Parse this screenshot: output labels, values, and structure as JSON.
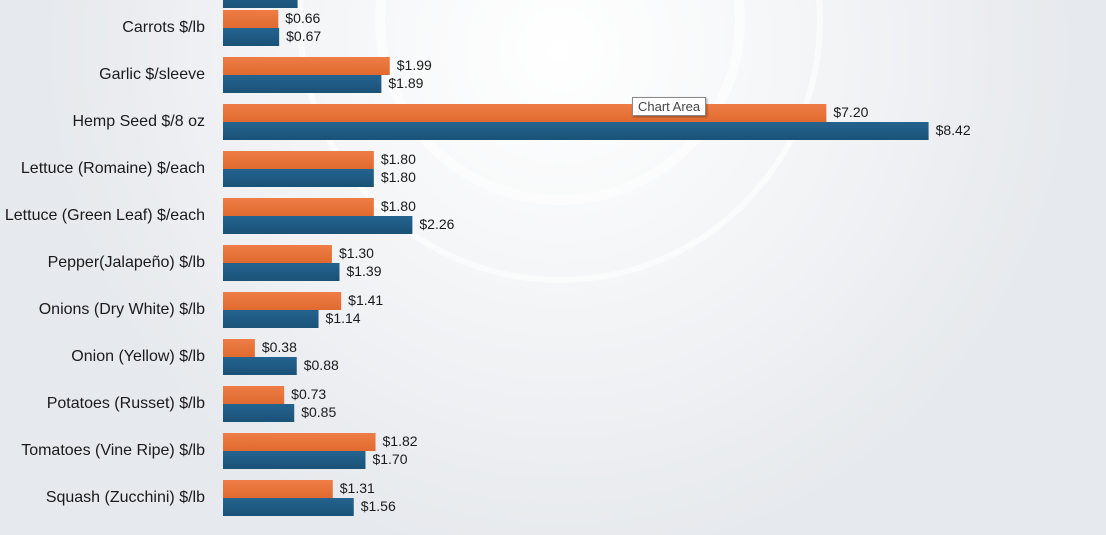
{
  "chart_data": {
    "type": "bar",
    "orientation": "horizontal",
    "categories": [
      "Carrots $/lb",
      "Garlic $/sleeve",
      "Hemp Seed $/8 oz",
      "Lettuce (Romaine) $/each",
      "Lettuce (Green Leaf) $/each",
      "Pepper(Jalapeño) $/lb",
      "Onions (Dry White) $/lb",
      "Onion (Yellow) $/lb",
      "Potatoes (Russet) $/lb",
      "Tomatoes (Vine Ripe) $/lb",
      "Squash (Zucchini) $/lb"
    ],
    "series": [
      {
        "color": "#e8743b",
        "values": [
          0.66,
          1.99,
          7.2,
          1.8,
          1.8,
          1.3,
          1.41,
          0.38,
          0.73,
          1.82,
          1.31
        ],
        "labels": [
          "$0.66",
          "$1.99",
          "$7.20",
          "$1.80",
          "$1.80",
          "$1.30",
          "$1.41",
          "$0.38",
          "$0.73",
          "$1.82",
          "$1.31"
        ]
      },
      {
        "color": "#1f5b84",
        "values": [
          0.67,
          1.89,
          8.42,
          1.8,
          2.26,
          1.39,
          1.14,
          0.88,
          0.85,
          1.7,
          1.56
        ],
        "labels": [
          "$0.67",
          "$1.89",
          "$8.42",
          "$1.80",
          "$2.26",
          "$1.39",
          "$1.14",
          "$0.88",
          "$0.85",
          "$1.70",
          "$1.56"
        ]
      }
    ],
    "title": "",
    "xlabel": "",
    "ylabel": "",
    "gridlines": false,
    "legend": "none",
    "partial_previous_bar": {
      "color": "#1f5b84",
      "value": 0.89
    }
  },
  "tooltip": {
    "text": "Chart Area"
  }
}
